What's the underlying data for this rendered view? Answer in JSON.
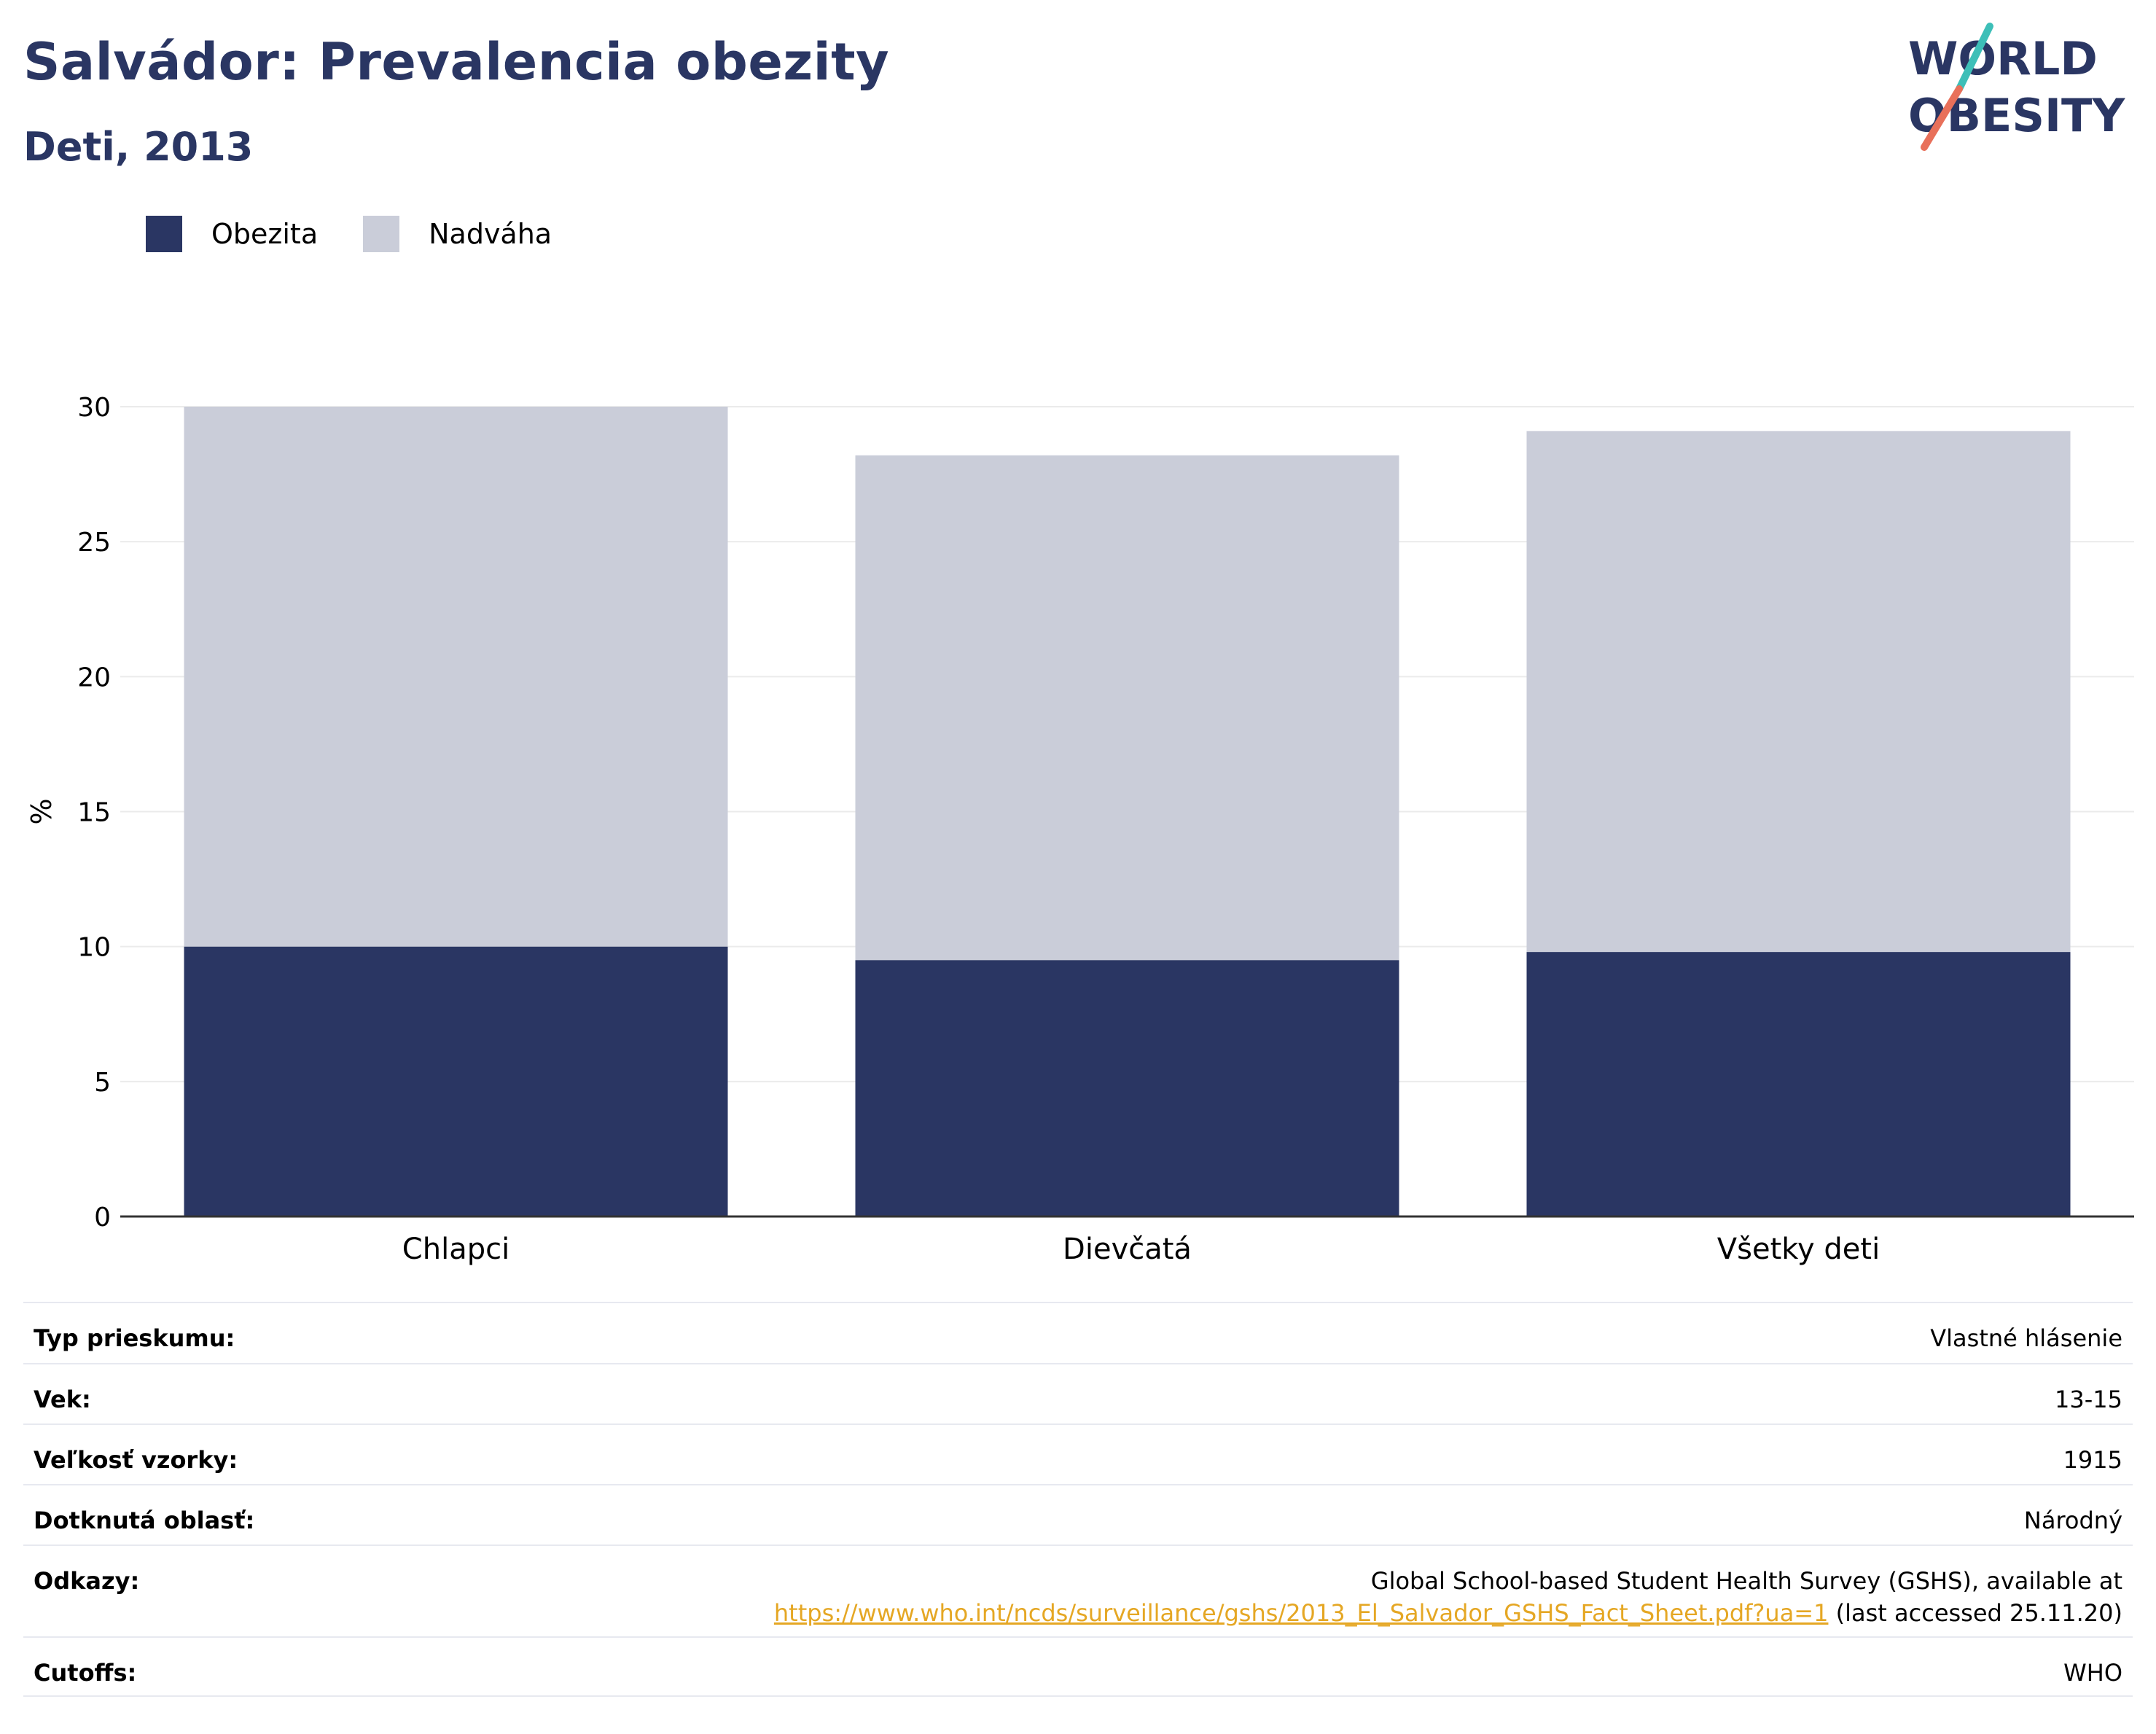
{
  "header": {
    "title": "Salvádor: Prevalencia obezity",
    "subtitle": "Deti, 2013"
  },
  "logo": {
    "line1": "WORLD",
    "line2": "OBESITY",
    "accent_teal": "#3dbfb8",
    "accent_coral": "#e8705a",
    "text_color": "#2a3663"
  },
  "chart_data": {
    "type": "bar",
    "stacked": true,
    "categories": [
      "Chlapci",
      "Dievčatá",
      "Všetky deti"
    ],
    "series": [
      {
        "name": "Obezita",
        "values": [
          10.0,
          9.5,
          9.8
        ],
        "color": "#2a3663"
      },
      {
        "name": "Nadváha",
        "values": [
          20.0,
          18.7,
          19.3
        ],
        "color": "#cacdd9"
      }
    ],
    "ylabel": "%",
    "ylim": [
      0,
      30
    ],
    "yticks": [
      0,
      5,
      10,
      15,
      20,
      25,
      30
    ],
    "grid": true,
    "legend_position": "top-left"
  },
  "info": {
    "rows": [
      {
        "key": "Typ prieskumu:",
        "value": "Vlastné hlásenie"
      },
      {
        "key": "Vek:",
        "value": "13-15"
      },
      {
        "key": "Veľkosť vzorky:",
        "value": "1915"
      },
      {
        "key": "Dotknutá oblasť:",
        "value": "Národný"
      }
    ],
    "references": {
      "key": "Odkazy:",
      "line1": "Global School-based Student Health Survey (GSHS), available at",
      "link": "https://www.who.int/ncds/surveillance/gshs/2013_El_Salvador_GSHS_Fact_Sheet.pdf?ua=1",
      "after_link": " (last accessed 25.11.20)"
    },
    "cutoffs": {
      "key": "Cutoffs:",
      "value": "WHO"
    }
  }
}
